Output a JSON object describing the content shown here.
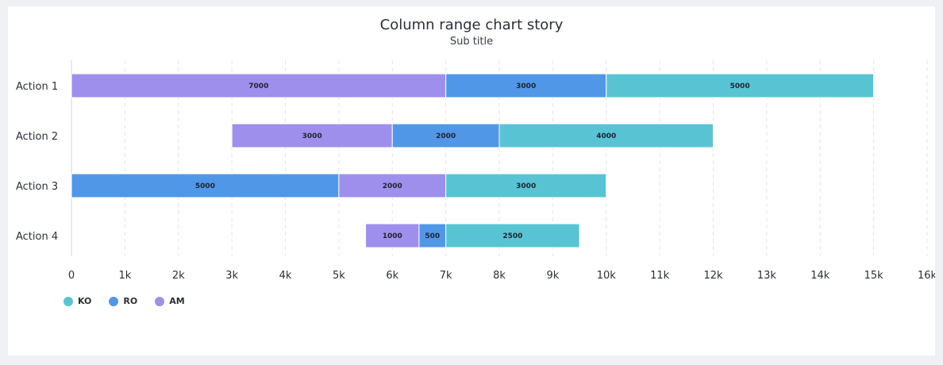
{
  "header": {
    "title": "Column range chart story",
    "subtitle": "Sub title"
  },
  "chart_data": {
    "type": "bar",
    "orientation": "horizontal",
    "stacked_ranges": true,
    "title": "Column range chart story",
    "subtitle": "Sub title",
    "categories": [
      "Action 1",
      "Action 2",
      "Action 3",
      "Action 4"
    ],
    "xlim": [
      0,
      16000
    ],
    "x_ticks": [
      {
        "value": 0,
        "label": "0"
      },
      {
        "value": 1000,
        "label": "1k"
      },
      {
        "value": 2000,
        "label": "2k"
      },
      {
        "value": 3000,
        "label": "3k"
      },
      {
        "value": 4000,
        "label": "4k"
      },
      {
        "value": 5000,
        "label": "5k"
      },
      {
        "value": 6000,
        "label": "6k"
      },
      {
        "value": 7000,
        "label": "7k"
      },
      {
        "value": 8000,
        "label": "8k"
      },
      {
        "value": 9000,
        "label": "9k"
      },
      {
        "value": 10000,
        "label": "10k"
      },
      {
        "value": 11000,
        "label": "11k"
      },
      {
        "value": 12000,
        "label": "12k"
      },
      {
        "value": 13000,
        "label": "13k"
      },
      {
        "value": 14000,
        "label": "14k"
      },
      {
        "value": 15000,
        "label": "15k"
      },
      {
        "value": 16000,
        "label": "16k"
      }
    ],
    "grid": true,
    "legend_position": "bottom-left",
    "series": [
      {
        "name": "KO",
        "color": "#58c4d3"
      },
      {
        "name": "RO",
        "color": "#5097e8"
      },
      {
        "name": "AM",
        "color": "#9f8fec"
      }
    ],
    "segments": [
      {
        "category": "Action 1",
        "series": "AM",
        "start": 0,
        "end": 7000,
        "label": "7000"
      },
      {
        "category": "Action 1",
        "series": "RO",
        "start": 7000,
        "end": 10000,
        "label": "3000"
      },
      {
        "category": "Action 1",
        "series": "KO",
        "start": 10000,
        "end": 15000,
        "label": "5000"
      },
      {
        "category": "Action 2",
        "series": "AM",
        "start": 3000,
        "end": 6000,
        "label": "3000"
      },
      {
        "category": "Action 2",
        "series": "RO",
        "start": 6000,
        "end": 8000,
        "label": "2000"
      },
      {
        "category": "Action 2",
        "series": "KO",
        "start": 8000,
        "end": 12000,
        "label": "4000"
      },
      {
        "category": "Action 3",
        "series": "RO",
        "start": 0,
        "end": 5000,
        "label": "5000"
      },
      {
        "category": "Action 3",
        "series": "AM",
        "start": 5000,
        "end": 7000,
        "label": "2000"
      },
      {
        "category": "Action 3",
        "series": "KO",
        "start": 7000,
        "end": 10000,
        "label": "3000"
      },
      {
        "category": "Action 4",
        "series": "AM",
        "start": 5500,
        "end": 6500,
        "label": "1000"
      },
      {
        "category": "Action 4",
        "series": "RO",
        "start": 6500,
        "end": 7000,
        "label": "500"
      },
      {
        "category": "Action 4",
        "series": "KO",
        "start": 7000,
        "end": 9500,
        "label": "2500"
      }
    ]
  }
}
